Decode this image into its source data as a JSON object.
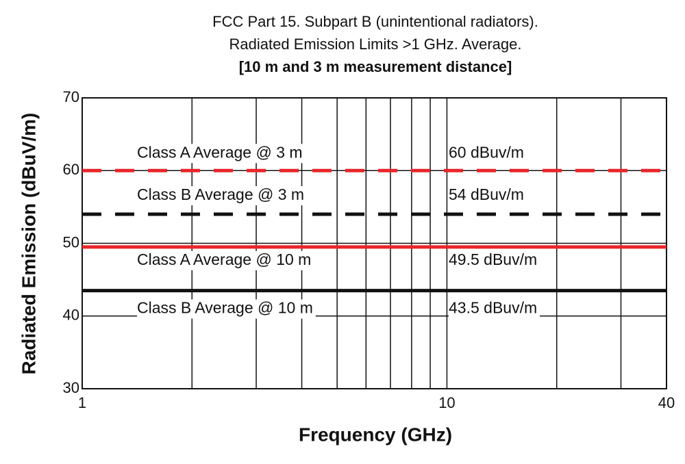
{
  "chart_data": {
    "type": "hline",
    "title": [
      "FCC Part 15. Subpart B (unintentional radiators).",
      "Radiated Emission Limits >1 GHz. Average.",
      "[10 m and 3 m measurement distance]"
    ],
    "x_label": "Frequency (GHz)",
    "y_label": "Radiated Emission (dBuV/m)",
    "xscale": "log",
    "xlim": [
      1,
      40
    ],
    "xticks": [
      1,
      10,
      40
    ],
    "xminor": [
      2,
      3,
      4,
      5,
      6,
      7,
      8,
      9,
      20,
      30
    ],
    "ylim": [
      30,
      70
    ],
    "yticks": [
      30,
      40,
      50,
      60,
      70
    ],
    "grid": true,
    "series": [
      {
        "name": "Class A Average @ 3 m",
        "color": "#e8262a",
        "dash": true,
        "value": 60,
        "value_label": "60 dBuv/m"
      },
      {
        "name": "Class B Average @ 3 m",
        "color": "#111111",
        "dash": true,
        "value": 54,
        "value_label": "54 dBuv/m"
      },
      {
        "name": "Class A Average @ 10 m",
        "color": "#e8262a",
        "dash": false,
        "value": 49.5,
        "value_label": "49.5 dBuv/m"
      },
      {
        "name": "Class B Average @ 10 m",
        "color": "#111111",
        "dash": false,
        "value": 43.5,
        "value_label": "43.5 dBuv/m"
      }
    ]
  }
}
